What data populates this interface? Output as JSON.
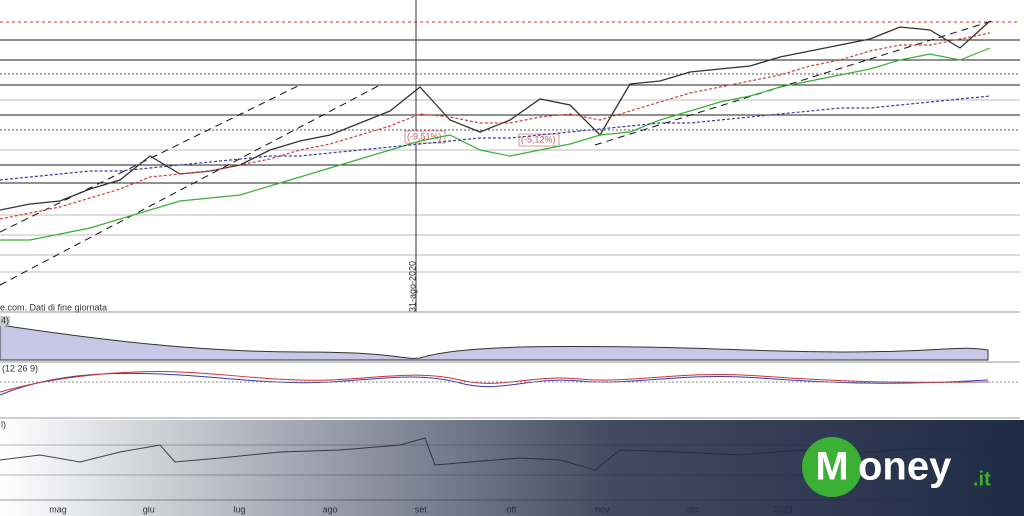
{
  "chart_data": {
    "type": "line",
    "source_note": "e.com. Dati di fine giornata",
    "date_marker": "31-ago-2020",
    "annotations": [
      "(-9,51%)",
      "(-5,12%)"
    ],
    "panel_labels": [
      "4)",
      "(12 26 9)",
      "l)"
    ],
    "x_labels": [
      "mag",
      "giu",
      "lug",
      "ago",
      "set",
      "ott",
      "nov",
      "dic",
      "2021"
    ],
    "ylim": [
      0,
      100
    ],
    "series": [
      {
        "color": "#333333",
        "values": [
          30,
          32,
          33,
          37,
          40,
          48,
          42,
          43,
          45,
          50,
          53,
          55,
          59,
          63,
          71,
          60,
          56,
          60,
          67,
          65,
          55,
          72,
          73,
          76,
          77,
          78,
          81,
          83,
          85,
          87,
          91,
          90,
          84,
          93
        ]
      },
      {
        "color": "#3cb034",
        "values": [
          20,
          20,
          22,
          24,
          27,
          30,
          33,
          34,
          35,
          38,
          41,
          44,
          47,
          50,
          53,
          55,
          50,
          48,
          50,
          52,
          55,
          56,
          60,
          63,
          66,
          68,
          71,
          73,
          75,
          77,
          80,
          82,
          80,
          84
        ]
      },
      {
        "color": "#d43c3c",
        "values": [
          27,
          29,
          31,
          34,
          37,
          41,
          42,
          43,
          45,
          47,
          50,
          52,
          55,
          58,
          62,
          61,
          59,
          59,
          61,
          62,
          60,
          63,
          66,
          69,
          71,
          73,
          75,
          78,
          80,
          83,
          85,
          85,
          87,
          89
        ]
      },
      {
        "color": "#3a3aa8",
        "values": [
          40,
          41,
          42,
          43,
          43,
          44,
          45,
          46,
          47,
          48,
          48,
          49,
          50,
          51,
          52,
          53,
          54,
          54,
          55,
          56,
          57,
          58,
          59,
          59,
          60,
          61,
          62,
          63,
          64,
          64,
          65,
          66,
          67,
          68
        ]
      }
    ]
  },
  "logo": {
    "initial": "M",
    "rest": "oney",
    "suffix": ".it"
  }
}
